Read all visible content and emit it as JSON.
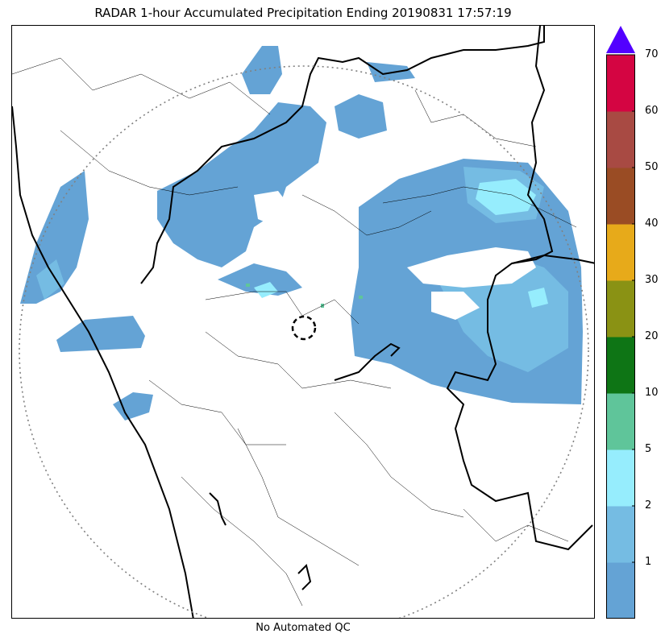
{
  "title": "RADAR 1-hour Accumulated Precipitation Ending 20190831 17:57:19",
  "footer_note": "No Automated QC",
  "colorbar": {
    "levels": [
      "",
      "1",
      "2",
      "5",
      "10",
      "20",
      "30",
      "40",
      "50",
      "60",
      "70"
    ],
    "colors": [
      "#64a3d5",
      "#75bce3",
      "#96edfd",
      "#5fc59a",
      "#0e7515",
      "#8a9214",
      "#e7aa1a",
      "#9a4c24",
      "#a84a43",
      "#d40542"
    ],
    "extend_color": "#5200ff"
  },
  "colors": {
    "rain_light": "#64a3d5",
    "rain_mid": "#75bce3",
    "rain_heavy": "#96edfd",
    "rain_green": "#5fc59a",
    "border": "#000000",
    "range_ring": "#808080"
  },
  "icons": {
    "radar_site": "dashed-circle-marker",
    "colorbar_extend": "triangle-arrow"
  }
}
